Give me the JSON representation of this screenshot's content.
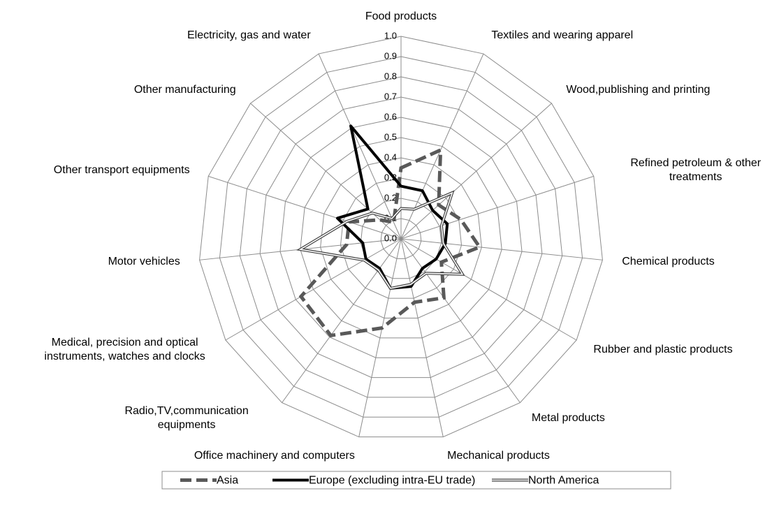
{
  "chart_data": {
    "type": "radar",
    "categories": [
      "Food products",
      "Textiles and wearing apparel",
      "Wood,publishing and printing",
      "Refined petroleum & other treatments",
      "Chemical products",
      "Rubber and plastic products",
      "Metal products",
      "Mechanical products",
      "Office machinery and computers",
      "Radio,TV,communication equipments",
      "Medical, precision and optical instruments, watches and clocks",
      "Motor vehicles",
      "Other transport equipments",
      "Other manufacturing",
      "Electricity, gas and water"
    ],
    "series": [
      {
        "name": "Asia",
        "color": "#595959",
        "style": "dashed",
        "values": [
          0.35,
          0.48,
          0.25,
          0.31,
          0.39,
          0.23,
          0.36,
          0.32,
          0.45,
          0.59,
          0.57,
          0.27,
          0.27,
          0.14,
          0.09
        ]
      },
      {
        "name": "Europe (excluding intra-EU trade)",
        "color": "#000000",
        "style": "solid",
        "values": [
          0.26,
          0.26,
          0.21,
          0.24,
          0.22,
          0.2,
          0.18,
          0.24,
          0.25,
          0.18,
          0.2,
          0.19,
          0.33,
          0.22,
          0.61
        ]
      },
      {
        "name": "North America",
        "color": "#404040",
        "style": "double",
        "values": [
          0.15,
          0.16,
          0.34,
          0.21,
          0.21,
          0.35,
          0.21,
          0.23,
          0.25,
          0.19,
          0.21,
          0.5,
          0.28,
          0.19,
          0.11
        ]
      }
    ],
    "rlim": [
      0,
      1
    ],
    "rticks": [
      {
        "value": 0,
        "label": "0.0"
      },
      {
        "value": 0.1,
        "label": "0.1"
      },
      {
        "value": 0.2,
        "label": "0.2"
      },
      {
        "value": 0.3,
        "label": "0.3"
      },
      {
        "value": 0.4,
        "label": "0.4"
      },
      {
        "value": 0.5,
        "label": "0.5"
      },
      {
        "value": 0.6,
        "label": "0.6"
      },
      {
        "value": 0.7,
        "label": "0.7"
      },
      {
        "value": 0.8,
        "label": "0.8"
      },
      {
        "value": 0.9,
        "label": "0.9"
      },
      {
        "value": 1,
        "label": "1.0"
      }
    ],
    "grid": true,
    "legend": "bottom"
  }
}
